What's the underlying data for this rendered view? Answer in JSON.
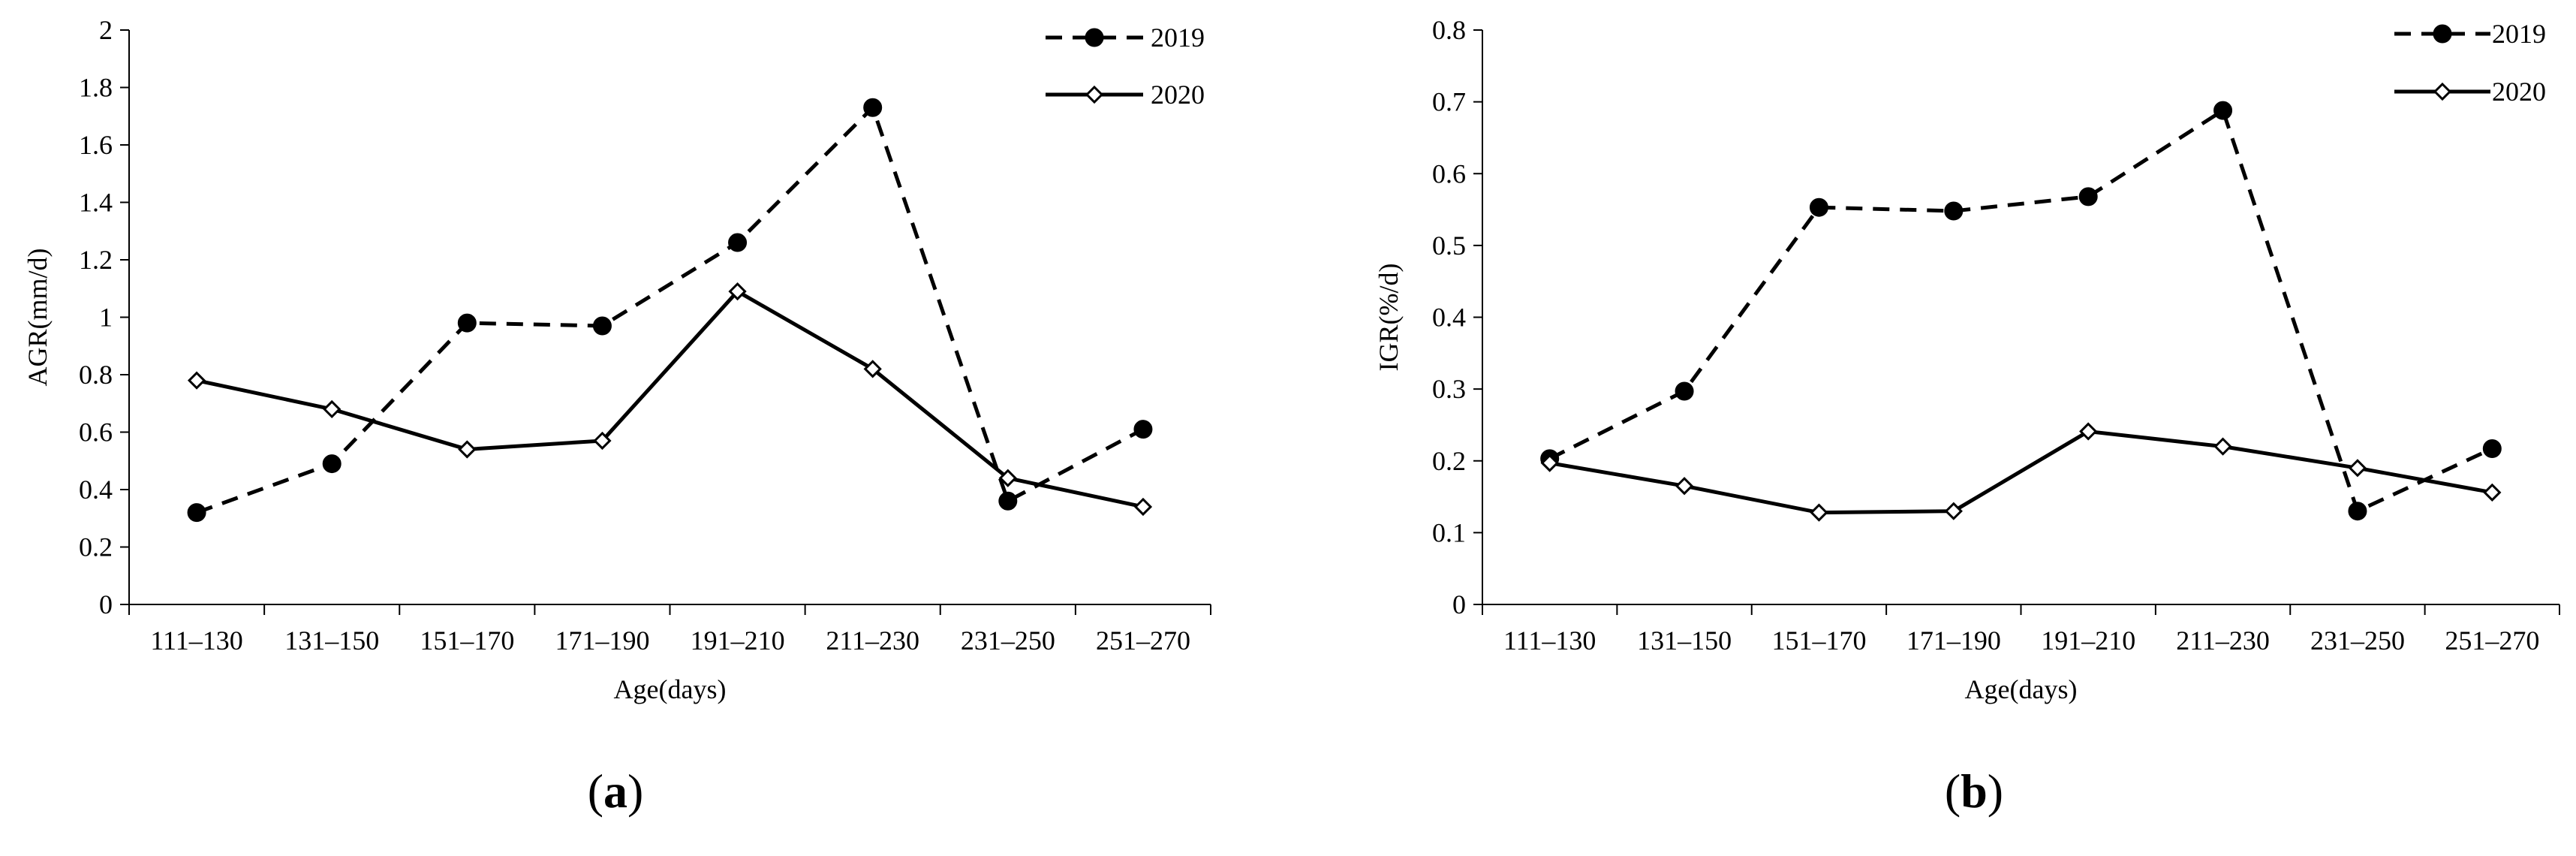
{
  "chart_data": [
    {
      "type": "line",
      "panel_label": "a",
      "xlabel": "Age(days)",
      "ylabel": "AGR(mm/d)",
      "categories": [
        "111–130",
        "131–150",
        "151–170",
        "171–190",
        "191–210",
        "211–230",
        "231–250",
        "251–270"
      ],
      "ylim": [
        0,
        2
      ],
      "yticks": [
        "0",
        "0.2",
        "0.4",
        "0.6",
        "0.8",
        "1",
        "1.2",
        "1.4",
        "1.6",
        "1.8",
        "2"
      ],
      "legend_position": "top-right",
      "grid": false,
      "series": [
        {
          "name": "2019",
          "style": "dashed",
          "marker": "filled-circle",
          "values": [
            0.32,
            0.49,
            0.98,
            0.97,
            1.26,
            1.73,
            0.36,
            0.61
          ]
        },
        {
          "name": "2020",
          "style": "solid",
          "marker": "open-diamond",
          "values": [
            0.78,
            0.68,
            0.54,
            0.57,
            1.09,
            0.82,
            0.44,
            0.34
          ]
        }
      ]
    },
    {
      "type": "line",
      "panel_label": "b",
      "xlabel": "Age(days)",
      "ylabel": "IGR(%/d)",
      "categories": [
        "111–130",
        "131–150",
        "151–170",
        "171–190",
        "191–210",
        "211–230",
        "231–250",
        "251–270"
      ],
      "ylim": [
        0,
        0.8
      ],
      "yticks": [
        "0",
        "0.1",
        "0.2",
        "0.3",
        "0.4",
        "0.5",
        "0.6",
        "0.7",
        "0.8"
      ],
      "legend_position": "top-right",
      "grid": false,
      "series": [
        {
          "name": "2019",
          "style": "dashed",
          "marker": "filled-circle",
          "values": [
            0.203,
            0.297,
            0.553,
            0.548,
            0.568,
            0.688,
            0.13,
            0.217
          ]
        },
        {
          "name": "2020",
          "style": "solid",
          "marker": "open-diamond",
          "values": [
            0.197,
            0.165,
            0.128,
            0.13,
            0.241,
            0.22,
            0.19,
            0.156
          ]
        }
      ]
    }
  ]
}
